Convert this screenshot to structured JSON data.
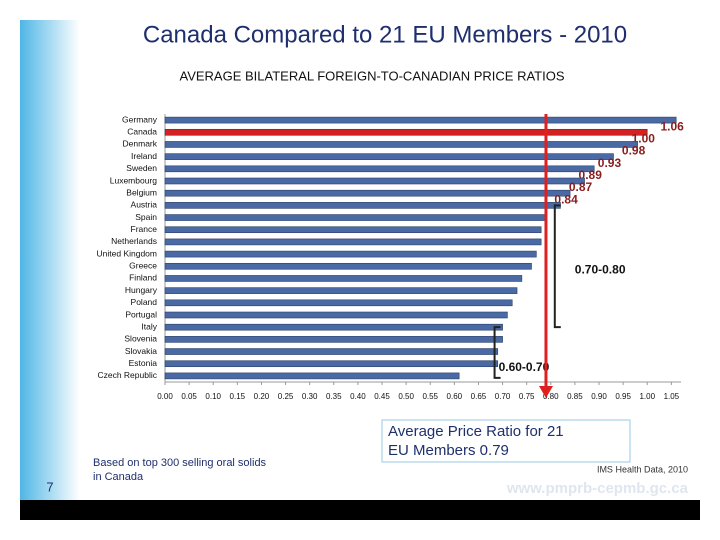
{
  "header": {
    "title": "Canada Compared to 21 EU Members - 2010",
    "page_number": "7"
  },
  "chart_data": {
    "type": "hbar",
    "title": "AVERAGE BILATERAL FOREIGN-TO-CANADIAN PRICE RATIOS",
    "categories": [
      "Germany",
      "Canada",
      "Denmark",
      "Ireland",
      "Sweden",
      "Luxembourg",
      "Belgium",
      "Austria",
      "Spain",
      "France",
      "Netherlands",
      "United Kingdom",
      "Greece",
      "Finland",
      "Hungary",
      "Poland",
      "Portugal",
      "Italy",
      "Slovenia",
      "Slovakia",
      "Estonia",
      "Czech Republic"
    ],
    "values": [
      1.06,
      1.0,
      0.98,
      0.93,
      0.89,
      0.87,
      0.84,
      0.82,
      0.79,
      0.78,
      0.78,
      0.77,
      0.76,
      0.74,
      0.73,
      0.72,
      0.71,
      0.7,
      0.7,
      0.69,
      0.69,
      0.61
    ],
    "value_labels": [
      "1.06",
      "1.00",
      "0.98",
      "0.93",
      "0.89",
      "0.87",
      "0.84",
      null,
      null,
      null,
      null,
      null,
      null,
      null,
      null,
      null,
      null,
      null,
      null,
      null,
      null,
      null
    ],
    "colors": [
      "#4a6aa5",
      "#d42020",
      "#4a6aa5",
      "#4a6aa5",
      "#4a6aa5",
      "#4a6aa5",
      "#4a6aa5",
      "#4a6aa5",
      "#4a6aa5",
      "#4a6aa5",
      "#4a6aa5",
      "#4a6aa5",
      "#4a6aa5",
      "#4a6aa5",
      "#4a6aa5",
      "#4a6aa5",
      "#4a6aa5",
      "#4a6aa5",
      "#4a6aa5",
      "#4a6aa5",
      "#4a6aa5",
      "#4a6aa5"
    ],
    "xlim": [
      0,
      1.07
    ],
    "xticks": [
      {
        "value": 0,
        "label": "0.00"
      },
      0.05,
      {
        "value": 0.1,
        "label": "0.10"
      },
      0.15,
      {
        "value": 0.2,
        "label": "0.20"
      },
      0.25,
      {
        "value": 0.3,
        "label": "0.30"
      },
      0.35,
      {
        "value": 0.4,
        "label": "0.40"
      },
      0.45,
      {
        "value": 0.5,
        "label": "0.50"
      },
      0.55,
      {
        "value": 0.6,
        "label": "0.60"
      },
      0.65,
      {
        "value": 0.7,
        "label": "0.70"
      },
      0.75,
      {
        "value": 0.8,
        "label": "0.80"
      },
      0.85,
      {
        "value": 0.9,
        "label": "0.90"
      },
      0.95,
      {
        "value": 1,
        "label": "1.00"
      },
      1.05
    ],
    "average_line": 0.79,
    "annotations": [
      "0.70-0.80",
      "0.60-0.70",
      "Average Price Ratio for 21 EU Members 0.79"
    ]
  },
  "footer": {
    "note": "Based on top 300 selling oral solids in Canada",
    "source": "IMS Health Data, 2010",
    "url": "www.pmprb-cepmb.gc.ca"
  }
}
